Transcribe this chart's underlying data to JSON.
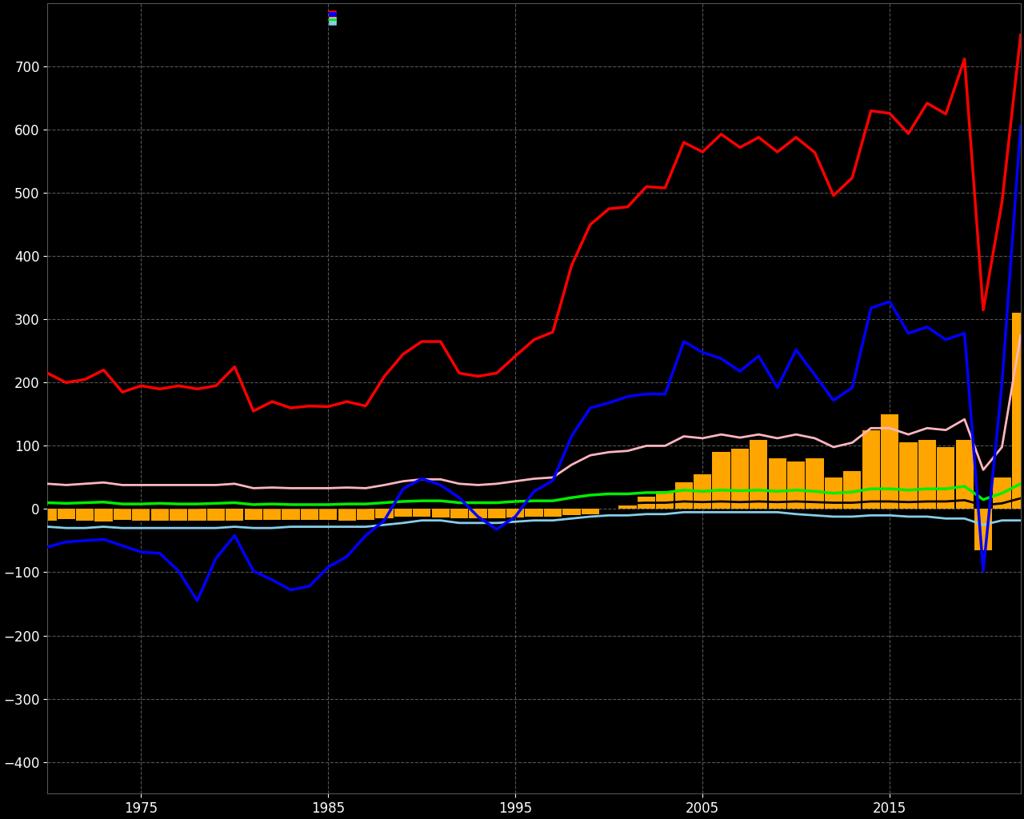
{
  "years": [
    1970,
    1971,
    1972,
    1973,
    1974,
    1975,
    1976,
    1977,
    1978,
    1979,
    1980,
    1981,
    1982,
    1983,
    1984,
    1985,
    1986,
    1987,
    1988,
    1989,
    1990,
    1991,
    1992,
    1993,
    1994,
    1995,
    1996,
    1997,
    1998,
    1999,
    2000,
    2001,
    2002,
    2003,
    2004,
    2005,
    2006,
    2007,
    2008,
    2009,
    2010,
    2011,
    2012,
    2013,
    2014,
    2015,
    2016,
    2017,
    2018,
    2019,
    2020,
    2021,
    2022
  ],
  "total_immigration": [
    215,
    200,
    205,
    220,
    185,
    195,
    190,
    195,
    190,
    195,
    225,
    155,
    170,
    160,
    163,
    162,
    170,
    163,
    210,
    245,
    265,
    265,
    215,
    210,
    215,
    242,
    268,
    280,
    385,
    450,
    475,
    478,
    510,
    508,
    580,
    565,
    593,
    572,
    588,
    565,
    588,
    564,
    496,
    524,
    630,
    626,
    594,
    642,
    625,
    712,
    315,
    485,
    750
  ],
  "net_migration": [
    -60,
    -52,
    -50,
    -48,
    -58,
    -68,
    -70,
    -98,
    -145,
    -78,
    -42,
    -98,
    -112,
    -128,
    -122,
    -92,
    -75,
    -42,
    -18,
    32,
    48,
    38,
    18,
    -12,
    -32,
    -12,
    28,
    45,
    115,
    160,
    168,
    178,
    182,
    182,
    265,
    248,
    238,
    218,
    242,
    192,
    252,
    212,
    172,
    192,
    318,
    328,
    278,
    288,
    268,
    278,
    -98,
    198,
    606
  ],
  "eu_bars": [
    0,
    0,
    0,
    0,
    0,
    0,
    0,
    0,
    0,
    0,
    0,
    0,
    0,
    0,
    0,
    0,
    0,
    0,
    0,
    0,
    0,
    0,
    0,
    0,
    0,
    0,
    0,
    0,
    0,
    0,
    0,
    0,
    0,
    0,
    0,
    0,
    0,
    0,
    0,
    0,
    0,
    0,
    0,
    0,
    0,
    0,
    0,
    0,
    0,
    0,
    0,
    0,
    0
  ],
  "eu_immigration": [
    -18,
    -16,
    -18,
    -20,
    -17,
    -18,
    -18,
    -18,
    -18,
    -18,
    -18,
    -17,
    -17,
    -17,
    -17,
    -17,
    -18,
    -17,
    -15,
    -12,
    -12,
    -13,
    -15,
    -15,
    -15,
    -13,
    -12,
    -12,
    -10,
    -8,
    0,
    5,
    20,
    28,
    42,
    55,
    90,
    95,
    110,
    80,
    75,
    80,
    50,
    60,
    125,
    150,
    105,
    110,
    98,
    110,
    -65,
    50,
    310
  ],
  "pink_line": [
    40,
    38,
    40,
    42,
    38,
    38,
    38,
    38,
    38,
    38,
    40,
    33,
    34,
    33,
    33,
    33,
    34,
    33,
    38,
    44,
    47,
    47,
    40,
    38,
    40,
    44,
    48,
    50,
    70,
    85,
    90,
    92,
    100,
    100,
    115,
    112,
    118,
    113,
    118,
    112,
    118,
    112,
    98,
    105,
    128,
    128,
    118,
    128,
    125,
    142,
    62,
    98,
    275
  ],
  "green_line": [
    10,
    9,
    10,
    11,
    8,
    8,
    9,
    8,
    8,
    9,
    10,
    7,
    8,
    7,
    7,
    7,
    8,
    8,
    10,
    12,
    13,
    13,
    10,
    10,
    10,
    12,
    13,
    13,
    18,
    22,
    24,
    24,
    26,
    26,
    30,
    28,
    30,
    29,
    30,
    28,
    30,
    28,
    25,
    27,
    32,
    32,
    30,
    32,
    32,
    36,
    15,
    25,
    40
  ],
  "light_blue_line": [
    -28,
    -30,
    -30,
    -28,
    -30,
    -30,
    -30,
    -30,
    -30,
    -30,
    -28,
    -30,
    -30,
    -28,
    -28,
    -28,
    -28,
    -28,
    -25,
    -22,
    -18,
    -18,
    -22,
    -22,
    -22,
    -20,
    -18,
    -18,
    -15,
    -12,
    -10,
    -10,
    -8,
    -8,
    -5,
    -5,
    -5,
    -5,
    -5,
    -5,
    -8,
    -10,
    -12,
    -12,
    -10,
    -10,
    -12,
    -12,
    -15,
    -15,
    -25,
    -18,
    -18
  ],
  "black_line": [
    3,
    3,
    3,
    3,
    2,
    2,
    2,
    2,
    2,
    3,
    3,
    2,
    2,
    2,
    2,
    2,
    2,
    2,
    3,
    4,
    5,
    5,
    3,
    3,
    3,
    4,
    5,
    5,
    6,
    8,
    9,
    9,
    10,
    10,
    12,
    11,
    12,
    11,
    12,
    11,
    12,
    11,
    10,
    10,
    12,
    12,
    11,
    12,
    12,
    14,
    6,
    9,
    17
  ],
  "bg_color": "#000000",
  "grid_color": "#555555",
  "colors": {
    "red": "#ff0000",
    "blue": "#0000ff",
    "orange": "#ffa500",
    "pink": "#ffb6c1",
    "green": "#00ee00",
    "light_blue": "#87ceeb",
    "black_line": "#222222"
  },
  "xlim": [
    1970,
    2022
  ],
  "ylim": [
    -450,
    800
  ],
  "yticks": [
    -400,
    -300,
    -200,
    -100,
    0,
    100,
    200,
    300,
    400,
    500,
    600,
    700
  ],
  "xticks": [
    1975,
    1985,
    1995,
    2005,
    2015
  ]
}
